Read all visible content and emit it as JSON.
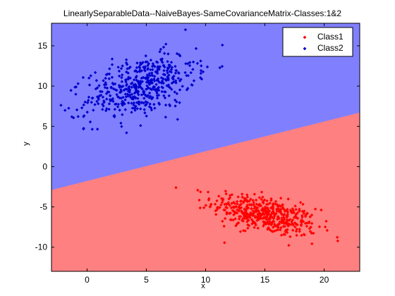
{
  "chart_data": {
    "type": "scatter",
    "title": "LinearlySeparableData--NaiveBayes-SameCovarianceMatrix-Classes:1&2",
    "xlabel": "x",
    "ylabel": "y",
    "xlim": [
      -3,
      23
    ],
    "ylim": [
      -13,
      17.8
    ],
    "xticks": [
      0,
      5,
      10,
      15,
      20
    ],
    "yticks": [
      -10,
      -5,
      0,
      5,
      10,
      15
    ],
    "grid": false,
    "legend_position": "top-right",
    "decision_boundary": {
      "x": [
        -3,
        23
      ],
      "y": [
        -2.9,
        6.7
      ]
    },
    "region_colors": {
      "upper": "#8080ff",
      "lower": "#ff8080"
    },
    "series": [
      {
        "name": "Class1",
        "color": "#ff0000",
        "marker": "diamond",
        "count": 500,
        "mean": [
          15.0,
          -6.0
        ],
        "std": [
          2.2,
          1.3
        ],
        "correlation": -0.55,
        "x_range": [
          7.5,
          22.2
        ],
        "y_range": [
          -11.0,
          -1.0
        ]
      },
      {
        "name": "Class2",
        "color": "#0000cc",
        "marker": "diamond",
        "count": 500,
        "mean": [
          4.5,
          10.0
        ],
        "std": [
          2.3,
          2.0
        ],
        "correlation": 0.45,
        "x_range": [
          -2.2,
          12.0
        ],
        "y_range": [
          4.2,
          17.0
        ]
      }
    ]
  }
}
